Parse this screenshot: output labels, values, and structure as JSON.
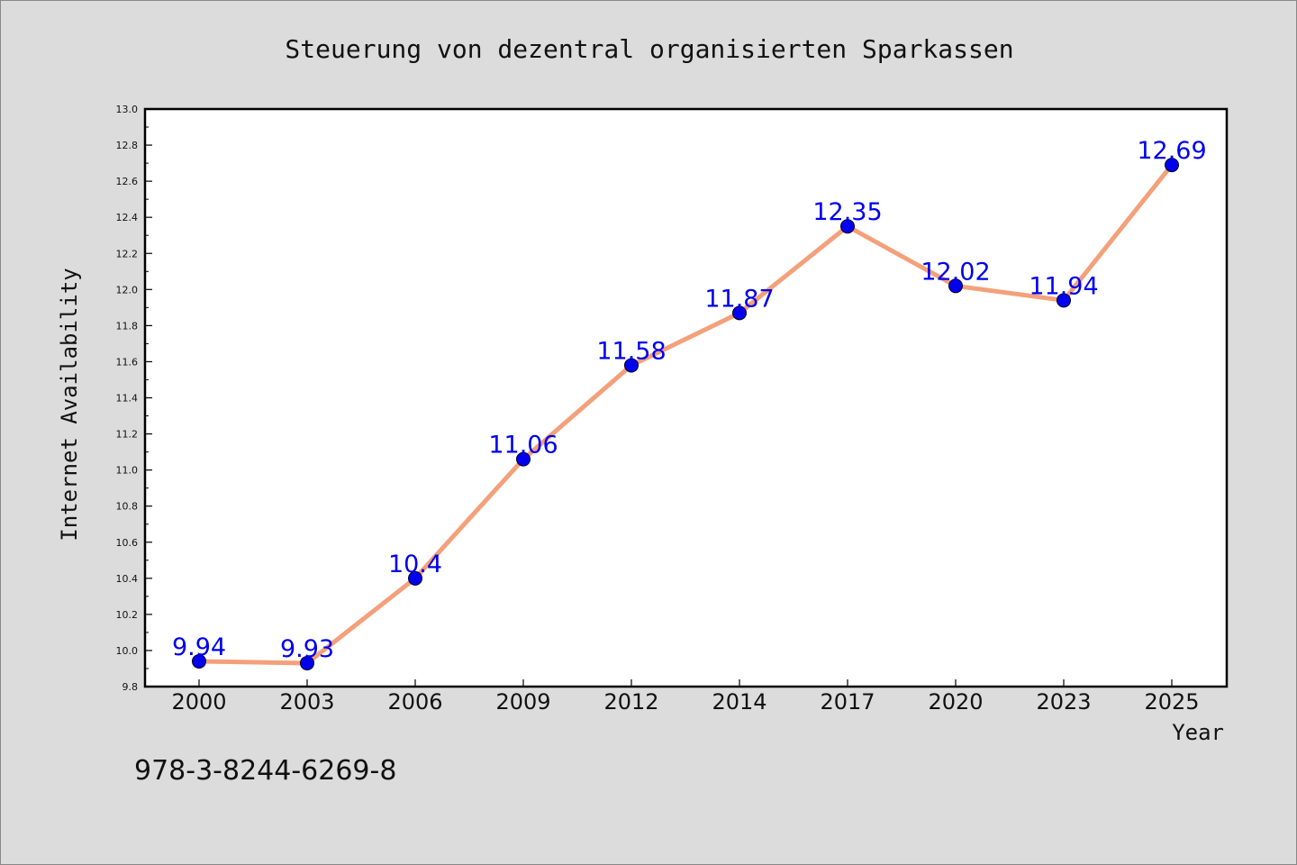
{
  "chart_data": {
    "type": "line",
    "title": "Steuerung von dezentral organisierten Sparkassen",
    "xlabel": "Year",
    "ylabel": "Internet Availability",
    "x": [
      "2000",
      "2003",
      "2006",
      "2009",
      "2012",
      "2014",
      "2017",
      "2020",
      "2023",
      "2025"
    ],
    "values": [
      9.94,
      9.93,
      10.4,
      11.06,
      11.58,
      11.87,
      12.35,
      12.02,
      11.94,
      12.69
    ],
    "data_labels": [
      "9.94",
      "9.93",
      "10.4",
      "11.06",
      "11.58",
      "11.87",
      "12.35",
      "12.02",
      "11.94",
      "12.69"
    ],
    "ylim": [
      9.8,
      13.0
    ],
    "y_ticks": [
      "9.8",
      "10.0",
      "10.2",
      "10.4",
      "10.6",
      "10.8",
      "11.0",
      "11.2",
      "11.4",
      "11.6",
      "11.8",
      "12.0",
      "12.2",
      "12.4",
      "12.6",
      "12.8",
      "13.0"
    ],
    "grid": false,
    "legend": "none",
    "colors": {
      "line": "#f4a07a",
      "marker": "#0000ee",
      "data_label": "#0000ee",
      "background": "#dcdcdc",
      "plot_background": "#ffffff"
    }
  },
  "annotation": "978-3-8244-6269-8"
}
